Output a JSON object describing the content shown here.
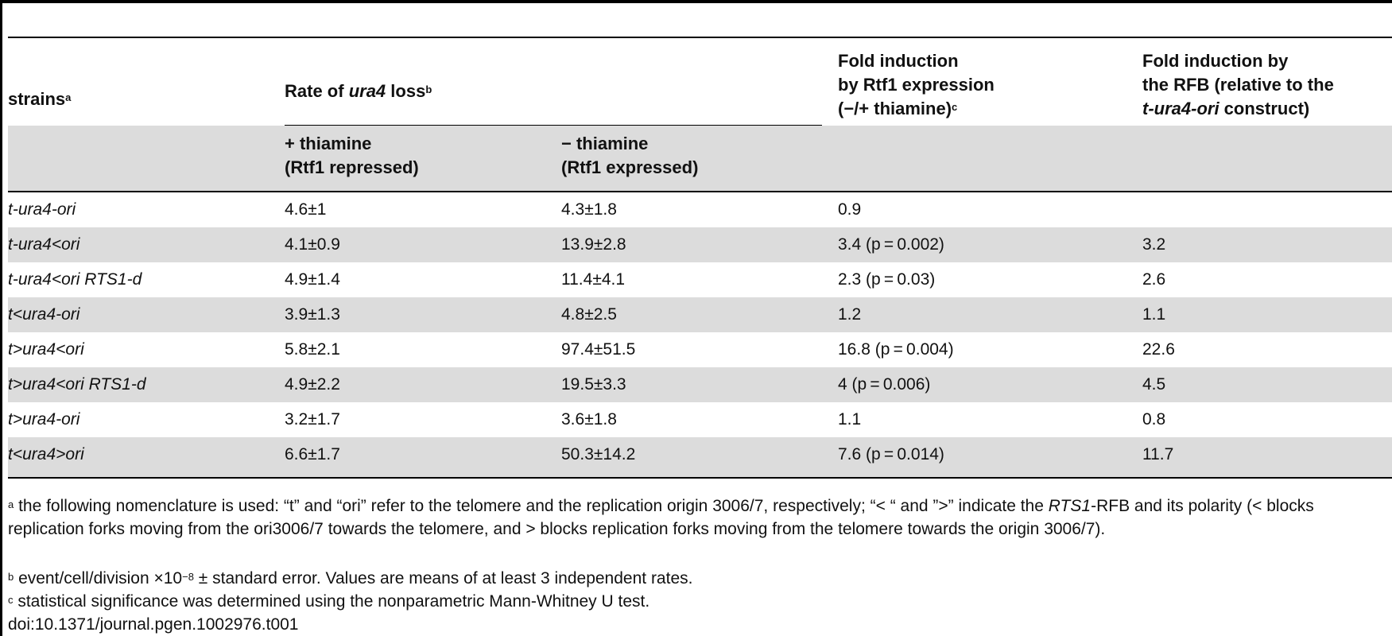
{
  "header": {
    "col_strains": "strains",
    "col_strains_sup": "a",
    "col_rate_pre": "Rate of ",
    "col_rate_italic": "ura4",
    "col_rate_post": " loss",
    "col_rate_sup": "b",
    "col_fold_rtf1_line1": "Fold induction",
    "col_fold_rtf1_line2": "by Rtf1 expression",
    "col_fold_rtf1_line3": "(−/+ thiamine)",
    "col_fold_rtf1_sup": "c",
    "col_fold_rfb_line1": "Fold induction by",
    "col_fold_rfb_line2": "the RFB (relative to the",
    "col_fold_rfb_line3_italic": "t-ura4-ori",
    "col_fold_rfb_line3_post": " construct)",
    "sub_plus_line1": "+ thiamine",
    "sub_plus_line2": "(Rtf1 repressed)",
    "sub_minus_line1": "− thiamine",
    "sub_minus_line2": "(Rtf1 expressed)"
  },
  "rows": [
    {
      "strain": "t-ura4-ori",
      "plus": "4.6±1",
      "minus": "4.3±1.8",
      "fold_rtf1": "0.9",
      "fold_rfb": ""
    },
    {
      "strain": "t-ura4<ori",
      "plus": "4.1±0.9",
      "minus": "13.9±2.8",
      "fold_rtf1": "3.4 (p = 0.002)",
      "fold_rfb": "3.2"
    },
    {
      "strain": "t-ura4<ori RTS1-d",
      "plus": "4.9±1.4",
      "minus": "11.4±4.1",
      "fold_rtf1": "2.3 (p = 0.03)",
      "fold_rfb": "2.6"
    },
    {
      "strain": "t<ura4-ori",
      "plus": "3.9±1.3",
      "minus": "4.8±2.5",
      "fold_rtf1": "1.2",
      "fold_rfb": "1.1"
    },
    {
      "strain": "t>ura4<ori",
      "plus": "5.8±2.1",
      "minus": "97.4±51.5",
      "fold_rtf1": "16.8 (p = 0.004)",
      "fold_rfb": "22.6"
    },
    {
      "strain": "t>ura4<ori RTS1-d",
      "plus": "4.9±2.2",
      "minus": "19.5±3.3",
      "fold_rtf1": "4 (p = 0.006)",
      "fold_rfb": "4.5"
    },
    {
      "strain": "t>ura4-ori",
      "plus": "3.2±1.7",
      "minus": "3.6±1.8",
      "fold_rtf1": "1.1",
      "fold_rfb": "0.8"
    },
    {
      "strain": "t<ura4>ori",
      "plus": "6.6±1.7",
      "minus": "50.3±14.2",
      "fold_rtf1": "7.6 (p = 0.014)",
      "fold_rfb": "11.7"
    }
  ],
  "footnotes": {
    "a_sup": "a",
    "a_text_1": " the following nomenclature is used: “t” and “ori” refer to the telomere and the replication origin 3006/7, respectively; “< “ and ”>” indicate the ",
    "a_text_italic": "RTS1",
    "a_text_2": "-RFB and its polarity (< blocks replication forks moving from the ori3006/7 towards the telomere, and > blocks replication forks moving from the telomere towards the origin 3006/7).",
    "b_sup": "b",
    "b_text_1": " event/cell/division ×10",
    "b_exp": "−8",
    "b_text_2": " ± standard error. Values are means of at least 3 independent rates.",
    "c_sup": "c",
    "c_text": " statistical significance was determined using the nonparametric Mann-Whitney U test.",
    "doi": "doi:10.1371/journal.pgen.1002976.t001"
  }
}
